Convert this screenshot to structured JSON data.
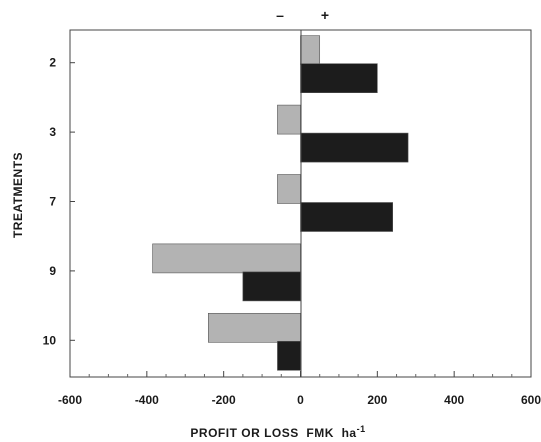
{
  "chart_data": {
    "type": "bar",
    "orientation": "horizontal",
    "categories": [
      "2",
      "3",
      "7",
      "9",
      "10"
    ],
    "series": [
      {
        "values": [
          50,
          -60,
          -60,
          -385,
          -240
        ],
        "color": "#b3b3b3"
      },
      {
        "values": [
          200,
          280,
          240,
          -150,
          -60
        ],
        "color": "#1c1c1c"
      }
    ],
    "xlabel": "PROFIT OR LOSS  FMK  ha",
    "xlabel_superscript": "-1",
    "ylabel": "TREATMENTS",
    "xlim": [
      -600,
      600
    ],
    "xticks": [
      "-600",
      "-400",
      "-200",
      "0",
      "200",
      "400",
      "600"
    ],
    "sign_labels": {
      "negative": "–",
      "positive": "+"
    },
    "grid": false,
    "legend": "none"
  }
}
